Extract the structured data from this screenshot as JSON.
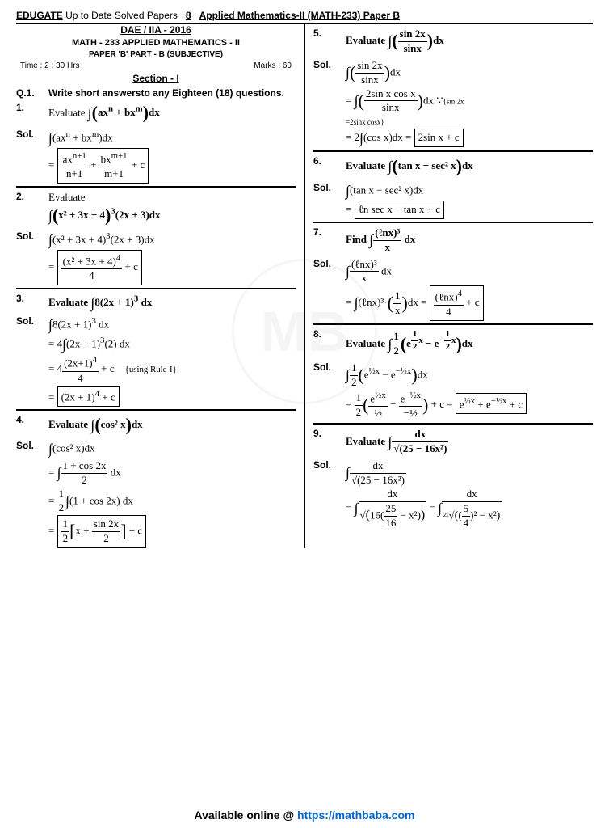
{
  "header": {
    "brand": "EDUGATE",
    "title_rest": "Up to Date Solved Papers",
    "page_num": "8",
    "subject": "Applied Mathematics-II (MATH-233) Paper B"
  },
  "left": {
    "exam": "DAE / IIA - 2016",
    "course": "MATH - 233  APPLIED MATHEMATICS - II",
    "paper": "PAPER 'B' PART - B (SUBJECTIVE)",
    "time": "Time : 2 : 30 Hrs",
    "marks": "Marks : 60",
    "section": "Section - I",
    "q1_num": "Q.1.",
    "q1_text": "Write short answersto any Eighteen (18) questions.",
    "items": [
      {
        "num": "1.",
        "label": "Evaluate",
        "expr": "∫(axⁿ + bxᵐ)dx",
        "sol_lines": [
          "∫(axⁿ + bxᵐ)dx"
        ],
        "result": "= axⁿ⁺¹/(n+1) + bxᵐ⁺¹/(m+1) + c"
      },
      {
        "num": "2.",
        "label": "Evaluate",
        "expr": "∫(x² + 3x + 4)³(2x + 3)dx",
        "sol_lines": [
          "∫(x² + 3x + 4)³(2x + 3)dx"
        ],
        "result": "= (x² + 3x + 4)⁴/4 + c"
      },
      {
        "num": "3.",
        "label": "Evaluate",
        "expr": "∫8(2x + 1)³dx",
        "sol_lines": [
          "∫8(2x + 1)³ dx",
          "= 4∫(2x + 1)³(2) dx",
          "= 4·(2x+1)⁴/4 + c"
        ],
        "note": "{using Rule-I}",
        "result": "= (2x + 1)⁴ + c"
      },
      {
        "num": "4.",
        "label": "Evaluate",
        "expr": "∫(cos² x)dx",
        "sol_lines": [
          "∫(cos² x)dx",
          "= ∫(1+cos 2x)/2 dx",
          "= ½∫(1 + cos 2x) dx"
        ],
        "result": "= ½[x + sin 2x/2] + c"
      }
    ]
  },
  "right": {
    "items": [
      {
        "num": "5.",
        "label": "Evaluate",
        "expr": "∫(sin 2x/sinx)dx",
        "sol_lines": [
          "∫(sin 2x/sinx)dx",
          "= ∫(2sin x cos x/sinx)dx ∵ {sin 2x = 2sinx cosx}",
          "= 2∫(cos x)dx ="
        ],
        "result": "2sin x + c"
      },
      {
        "num": "6.",
        "label": "Evaluate",
        "expr": "∫(tan x − sec² x)dx",
        "sol_lines": [
          "∫(tan x − sec² x)dx"
        ],
        "result": "= ℓn sec x − tan x + c"
      },
      {
        "num": "7.",
        "label": "Find",
        "expr": "∫(ℓnx)³/x dx",
        "sol_lines": [
          "∫(ℓnx)³/x dx",
          "= ∫(ℓnx)³·(1/x)dx ="
        ],
        "result": "(ℓnx)⁴/4 + c"
      },
      {
        "num": "8.",
        "label": "Evaluate",
        "expr": "∫½(e^(½x) − e^(−½x))dx",
        "sol_lines": [
          "∫½(e^(½x) − e^(−½x))dx",
          "= ½(e^(½x)/(½) − e^(−½x)/(−½)) + c ="
        ],
        "result": "e^(½x) + e^(−½x) + c"
      },
      {
        "num": "9.",
        "label": "Evaluate",
        "expr": "∫ dx/√(25 − 16x²)",
        "sol_lines": [
          "∫ dx/√(25 − 16x²)",
          "= ∫ dx/√(16(25/16 − x²)) = ∫ dx/(4√((5/4)² − x²))"
        ]
      }
    ]
  },
  "footer": {
    "text_prefix": "Available online @ ",
    "url": "https://mathbaba.com"
  },
  "watermark": "MB"
}
